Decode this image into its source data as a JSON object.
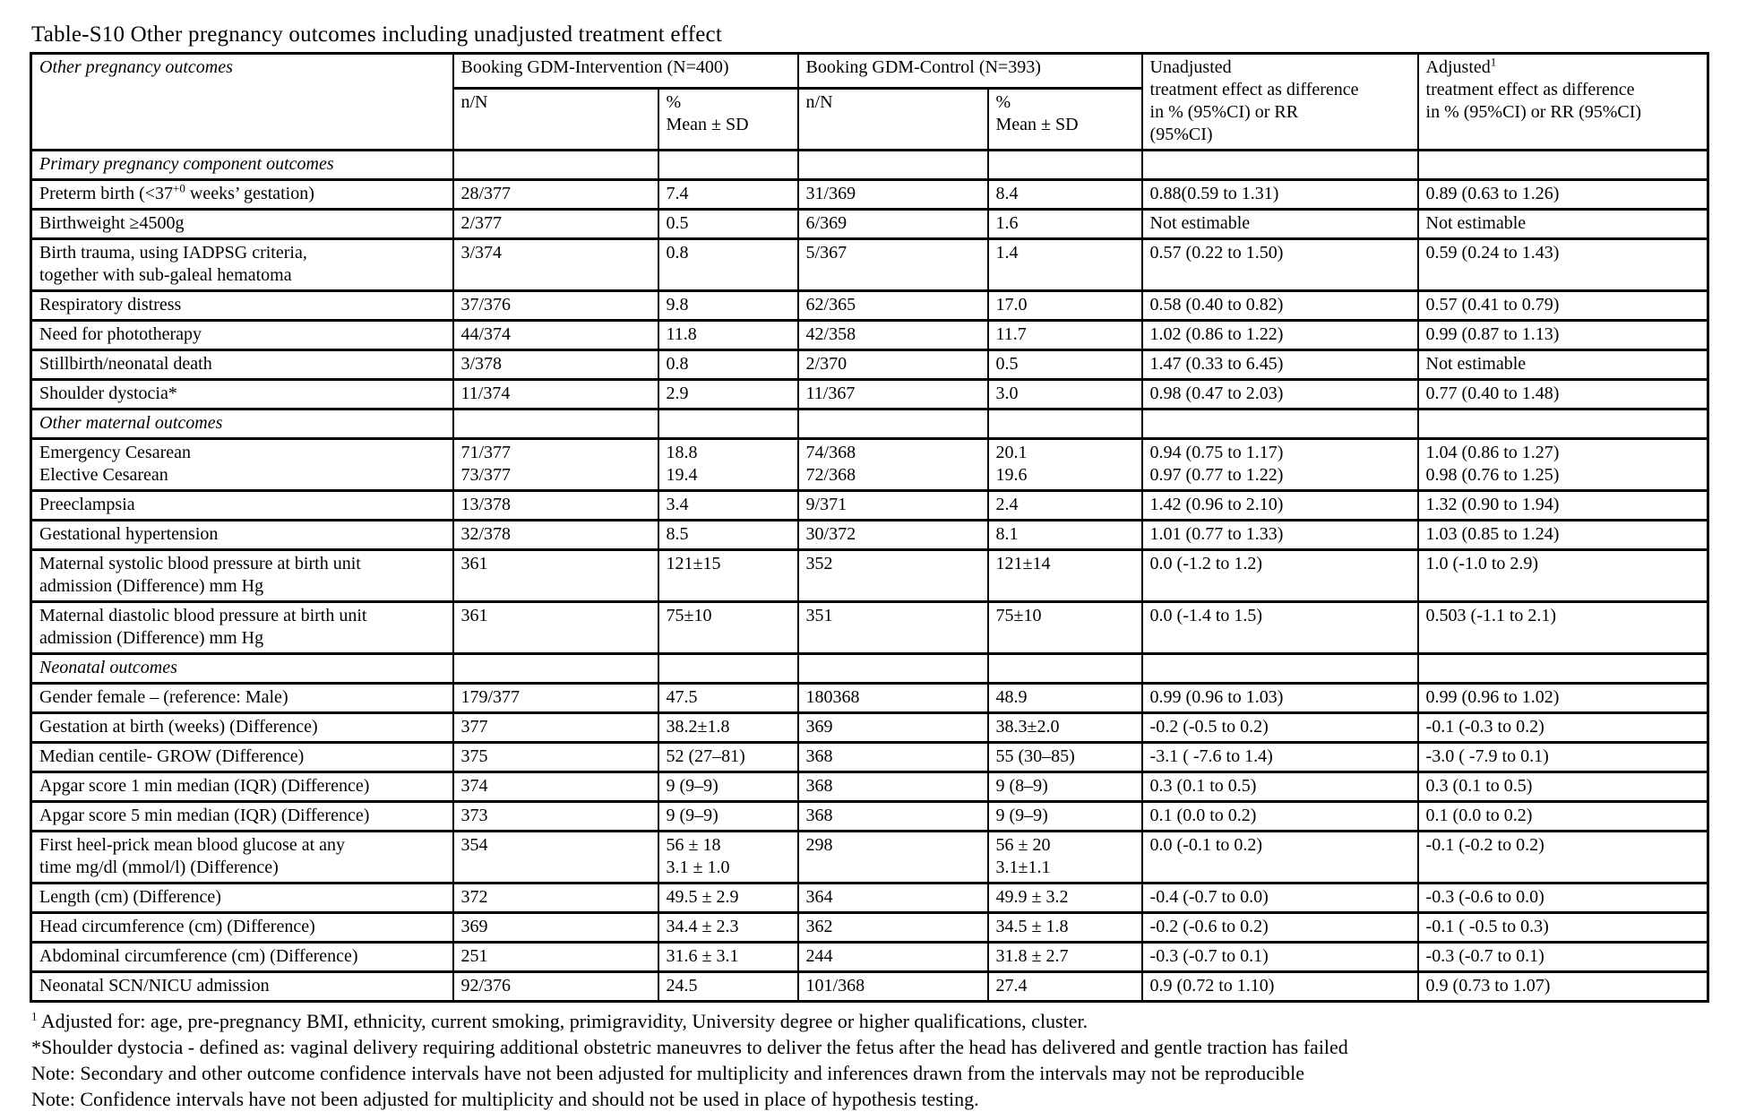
{
  "title": "Table-S10 Other pregnancy outcomes including unadjusted treatment effect",
  "table": {
    "header": {
      "outcomes_label": "Other pregnancy outcomes",
      "intervention_group": "Booking GDM-Intervention (N=400)",
      "control_group": "Booking GDM-Control (N=393)",
      "nn_label": "n/N",
      "pct_label": "%",
      "mean_label": "Mean ± SD",
      "unadjusted_lines": [
        "Unadjusted",
        "treatment effect as difference",
        "in % (95%CI) or RR",
        "(95%CI)"
      ],
      "adjusted_word": "Adjusted",
      "adjusted_sup": "1",
      "adjusted_lines": [
        "treatment effect as difference",
        "in % (95%CI) or RR (95%CI)"
      ]
    },
    "rows": [
      {
        "type": "section",
        "label": "Primary pregnancy component outcomes"
      },
      {
        "type": "data",
        "outcome_pre": "Preterm birth (<37",
        "outcome_sup": "+0",
        "outcome_post": " weeks’ gestation)",
        "cells": [
          "28/377",
          "7.4",
          "31/369",
          "8.4",
          "0.88(0.59 to 1.31)",
          "0.89 (0.63 to 1.26)"
        ]
      },
      {
        "type": "data",
        "outcome": "Birthweight ≥4500g",
        "cells": [
          "2/377",
          "0.5",
          "6/369",
          "1.6",
          "Not estimable",
          "Not estimable"
        ]
      },
      {
        "type": "data",
        "outcome": [
          "Birth trauma, using IADPSG criteria,",
          "together with sub-galeal hematoma"
        ],
        "cells": [
          "3/374",
          "0.8",
          "5/367",
          "1.4",
          "0.57 (0.22 to 1.50)",
          "0.59 (0.24 to 1.43)"
        ]
      },
      {
        "type": "data",
        "outcome": "Respiratory distress",
        "cells": [
          "37/376",
          "9.8",
          "62/365",
          "17.0",
          "0.58 (0.40 to 0.82)",
          "0.57 (0.41 to 0.79)"
        ]
      },
      {
        "type": "data",
        "outcome": "Need for phototherapy",
        "cells": [
          "44/374",
          "11.8",
          "42/358",
          "11.7",
          "1.02 (0.86 to 1.22)",
          "0.99 (0.87 to 1.13)"
        ]
      },
      {
        "type": "data",
        "outcome": "Stillbirth/neonatal death",
        "cells": [
          "3/378",
          "0.8",
          "2/370",
          "0.5",
          "1.47 (0.33 to 6.45)",
          "Not estimable"
        ]
      },
      {
        "type": "data",
        "outcome": "Shoulder dystocia*",
        "cells": [
          "11/374",
          "2.9",
          "11/367",
          "3.0",
          "0.98 (0.47 to 2.03)",
          "0.77 (0.40 to 1.48)"
        ]
      },
      {
        "type": "section",
        "label": "Other maternal outcomes"
      },
      {
        "type": "data",
        "outcome": [
          "Emergency Cesarean",
          "Elective Cesarean"
        ],
        "cells": [
          [
            "71/377",
            "73/377"
          ],
          [
            "18.8",
            "19.4"
          ],
          [
            "74/368",
            "72/368"
          ],
          [
            "20.1",
            "19.6"
          ],
          [
            "0.94 (0.75 to 1.17)",
            "0.97 (0.77 to 1.22)"
          ],
          [
            "1.04 (0.86 to 1.27)",
            "0.98 (0.76 to 1.25)"
          ]
        ]
      },
      {
        "type": "data",
        "outcome": "Preeclampsia",
        "cells": [
          "13/378",
          "3.4",
          "9/371",
          "2.4",
          "1.42 (0.96 to 2.10)",
          "1.32 (0.90 to 1.94)"
        ]
      },
      {
        "type": "data",
        "outcome": "Gestational hypertension",
        "cells": [
          "32/378",
          "8.5",
          "30/372",
          "8.1",
          "1.01 (0.77 to 1.33)",
          "1.03 (0.85 to 1.24)"
        ]
      },
      {
        "type": "data",
        "outcome": [
          "Maternal systolic blood pressure at birth unit",
          "admission (Difference) mm Hg"
        ],
        "cells": [
          "361",
          "121±15",
          "352",
          "121±14",
          "0.0 (-1.2 to 1.2)",
          "1.0 (-1.0 to 2.9)"
        ]
      },
      {
        "type": "data",
        "outcome": [
          "Maternal diastolic blood pressure at birth unit",
          "admission (Difference) mm Hg"
        ],
        "cells": [
          "361",
          "75±10",
          "351",
          "75±10",
          "0.0 (-1.4 to 1.5)",
          "0.503 (-1.1 to 2.1)"
        ]
      },
      {
        "type": "section",
        "label": "Neonatal outcomes"
      },
      {
        "type": "data",
        "outcome": "Gender female – (reference: Male)",
        "cells": [
          "179/377",
          "47.5",
          "180368",
          "48.9",
          "0.99 (0.96 to 1.03)",
          "0.99 (0.96 to 1.02)"
        ]
      },
      {
        "type": "data",
        "outcome": "Gestation at birth (weeks) (Difference)",
        "cells": [
          "377",
          "38.2±1.8",
          "369",
          "38.3±2.0",
          "-0.2 (-0.5 to 0.2)",
          "-0.1 (-0.3 to 0.2)"
        ]
      },
      {
        "type": "data",
        "outcome": "Median centile- GROW (Difference)",
        "cells": [
          "375",
          "52 (27–81)",
          "368",
          "55 (30–85)",
          "-3.1 ( -7.6 to 1.4)",
          "-3.0 ( -7.9 to 0.1)"
        ]
      },
      {
        "type": "data",
        "outcome": "Apgar score 1 min median (IQR) (Difference)",
        "cells": [
          "374",
          "9 (9–9)",
          "368",
          "9 (8–9)",
          "0.3 (0.1 to 0.5)",
          "0.3 (0.1 to 0.5)"
        ]
      },
      {
        "type": "data",
        "outcome": "Apgar score 5 min median (IQR) (Difference)",
        "cells": [
          "373",
          "9 (9–9)",
          "368",
          "9 (9–9)",
          "0.1 (0.0 to 0.2)",
          "0.1 (0.0 to 0.2)"
        ]
      },
      {
        "type": "data",
        "outcome": [
          "First heel-prick mean blood glucose at any",
          "time mg/dl (mmol/l) (Difference)"
        ],
        "middle_last2": true,
        "cells": [
          [
            "354"
          ],
          [
            "56 ± 18",
            "3.1 ± 1.0"
          ],
          [
            "298"
          ],
          [
            "56 ± 20",
            "3.1±1.1"
          ],
          "0.0 (-0.1 to 0.2)",
          "-0.1 (-0.2 to 0.2)"
        ]
      },
      {
        "type": "data",
        "outcome": "Length (cm) (Difference)",
        "cells": [
          "372",
          "49.5 ± 2.9",
          "364",
          "49.9 ± 3.2",
          "-0.4 (-0.7 to 0.0)",
          "-0.3 (-0.6 to 0.0)"
        ]
      },
      {
        "type": "data",
        "outcome": "Head circumference (cm) (Difference)",
        "cells": [
          "369",
          "34.4 ± 2.3",
          "362",
          "34.5 ± 1.8",
          "-0.2 (-0.6 to 0.2)",
          "-0.1 ( -0.5 to 0.3)"
        ]
      },
      {
        "type": "data",
        "outcome": "Abdominal circumference (cm) (Difference)",
        "cells": [
          "251",
          "31.6 ± 3.1",
          "244",
          "31.8 ± 2.7",
          "-0.3 (-0.7 to 0.1)",
          "-0.3 (-0.7 to 0.1)"
        ]
      },
      {
        "type": "data",
        "outcome": "Neonatal SCN/NICU admission",
        "cells": [
          "92/376",
          "24.5",
          "101/368",
          "27.4",
          "0.9 (0.72 to 1.10)",
          "0.9 (0.73 to 1.07)"
        ]
      }
    ]
  },
  "footnotes": [
    {
      "sup": "1",
      "text": " Adjusted for: age, pre-pregnancy BMI, ethnicity, current smoking, primigravidity, University degree or higher qualifications, cluster."
    },
    {
      "sup": "",
      "text": "*Shoulder dystocia - defined as: vaginal delivery requiring additional obstetric maneuvres to deliver the fetus after the head has delivered and gentle traction has failed"
    },
    {
      "sup": "",
      "text": "Note: Secondary and other outcome confidence intervals have not been adjusted for multiplicity and inferences drawn from the intervals may not be reproducible"
    },
    {
      "sup": "",
      "text": "Note: Confidence intervals have not been adjusted for multiplicity and should not be used in place of hypothesis testing."
    }
  ]
}
